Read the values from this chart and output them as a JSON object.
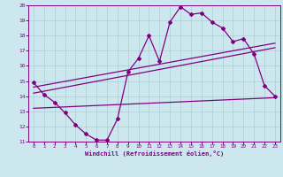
{
  "xlabel": "Windchill (Refroidissement éolien,°C)",
  "xlim": [
    -0.5,
    23.5
  ],
  "ylim": [
    11,
    20
  ],
  "xticks": [
    0,
    1,
    2,
    3,
    4,
    5,
    6,
    7,
    8,
    9,
    10,
    11,
    12,
    13,
    14,
    15,
    16,
    17,
    18,
    19,
    20,
    21,
    22,
    23
  ],
  "yticks": [
    11,
    12,
    13,
    14,
    15,
    16,
    17,
    18,
    19,
    20
  ],
  "background_color": "#cce8ee",
  "grid_color": "#aacdd5",
  "line_color": "#800080",
  "line1_x": [
    0,
    1,
    2,
    3,
    4,
    5,
    6,
    7,
    8,
    9,
    10,
    11,
    12,
    13,
    14,
    15,
    16,
    17,
    18,
    19,
    20,
    21,
    22,
    23
  ],
  "line1_y": [
    14.9,
    14.1,
    13.6,
    12.9,
    12.1,
    11.5,
    11.1,
    11.1,
    12.5,
    15.6,
    16.5,
    18.0,
    16.3,
    18.9,
    19.9,
    19.4,
    19.5,
    18.9,
    18.5,
    17.6,
    17.8,
    16.8,
    14.7,
    14.0
  ],
  "line2_x": [
    0,
    23
  ],
  "line2_y": [
    14.2,
    17.2
  ],
  "line3_x": [
    0,
    23
  ],
  "line3_y": [
    14.6,
    17.5
  ],
  "line4_x": [
    0,
    23
  ],
  "line4_y": [
    13.2,
    13.9
  ]
}
